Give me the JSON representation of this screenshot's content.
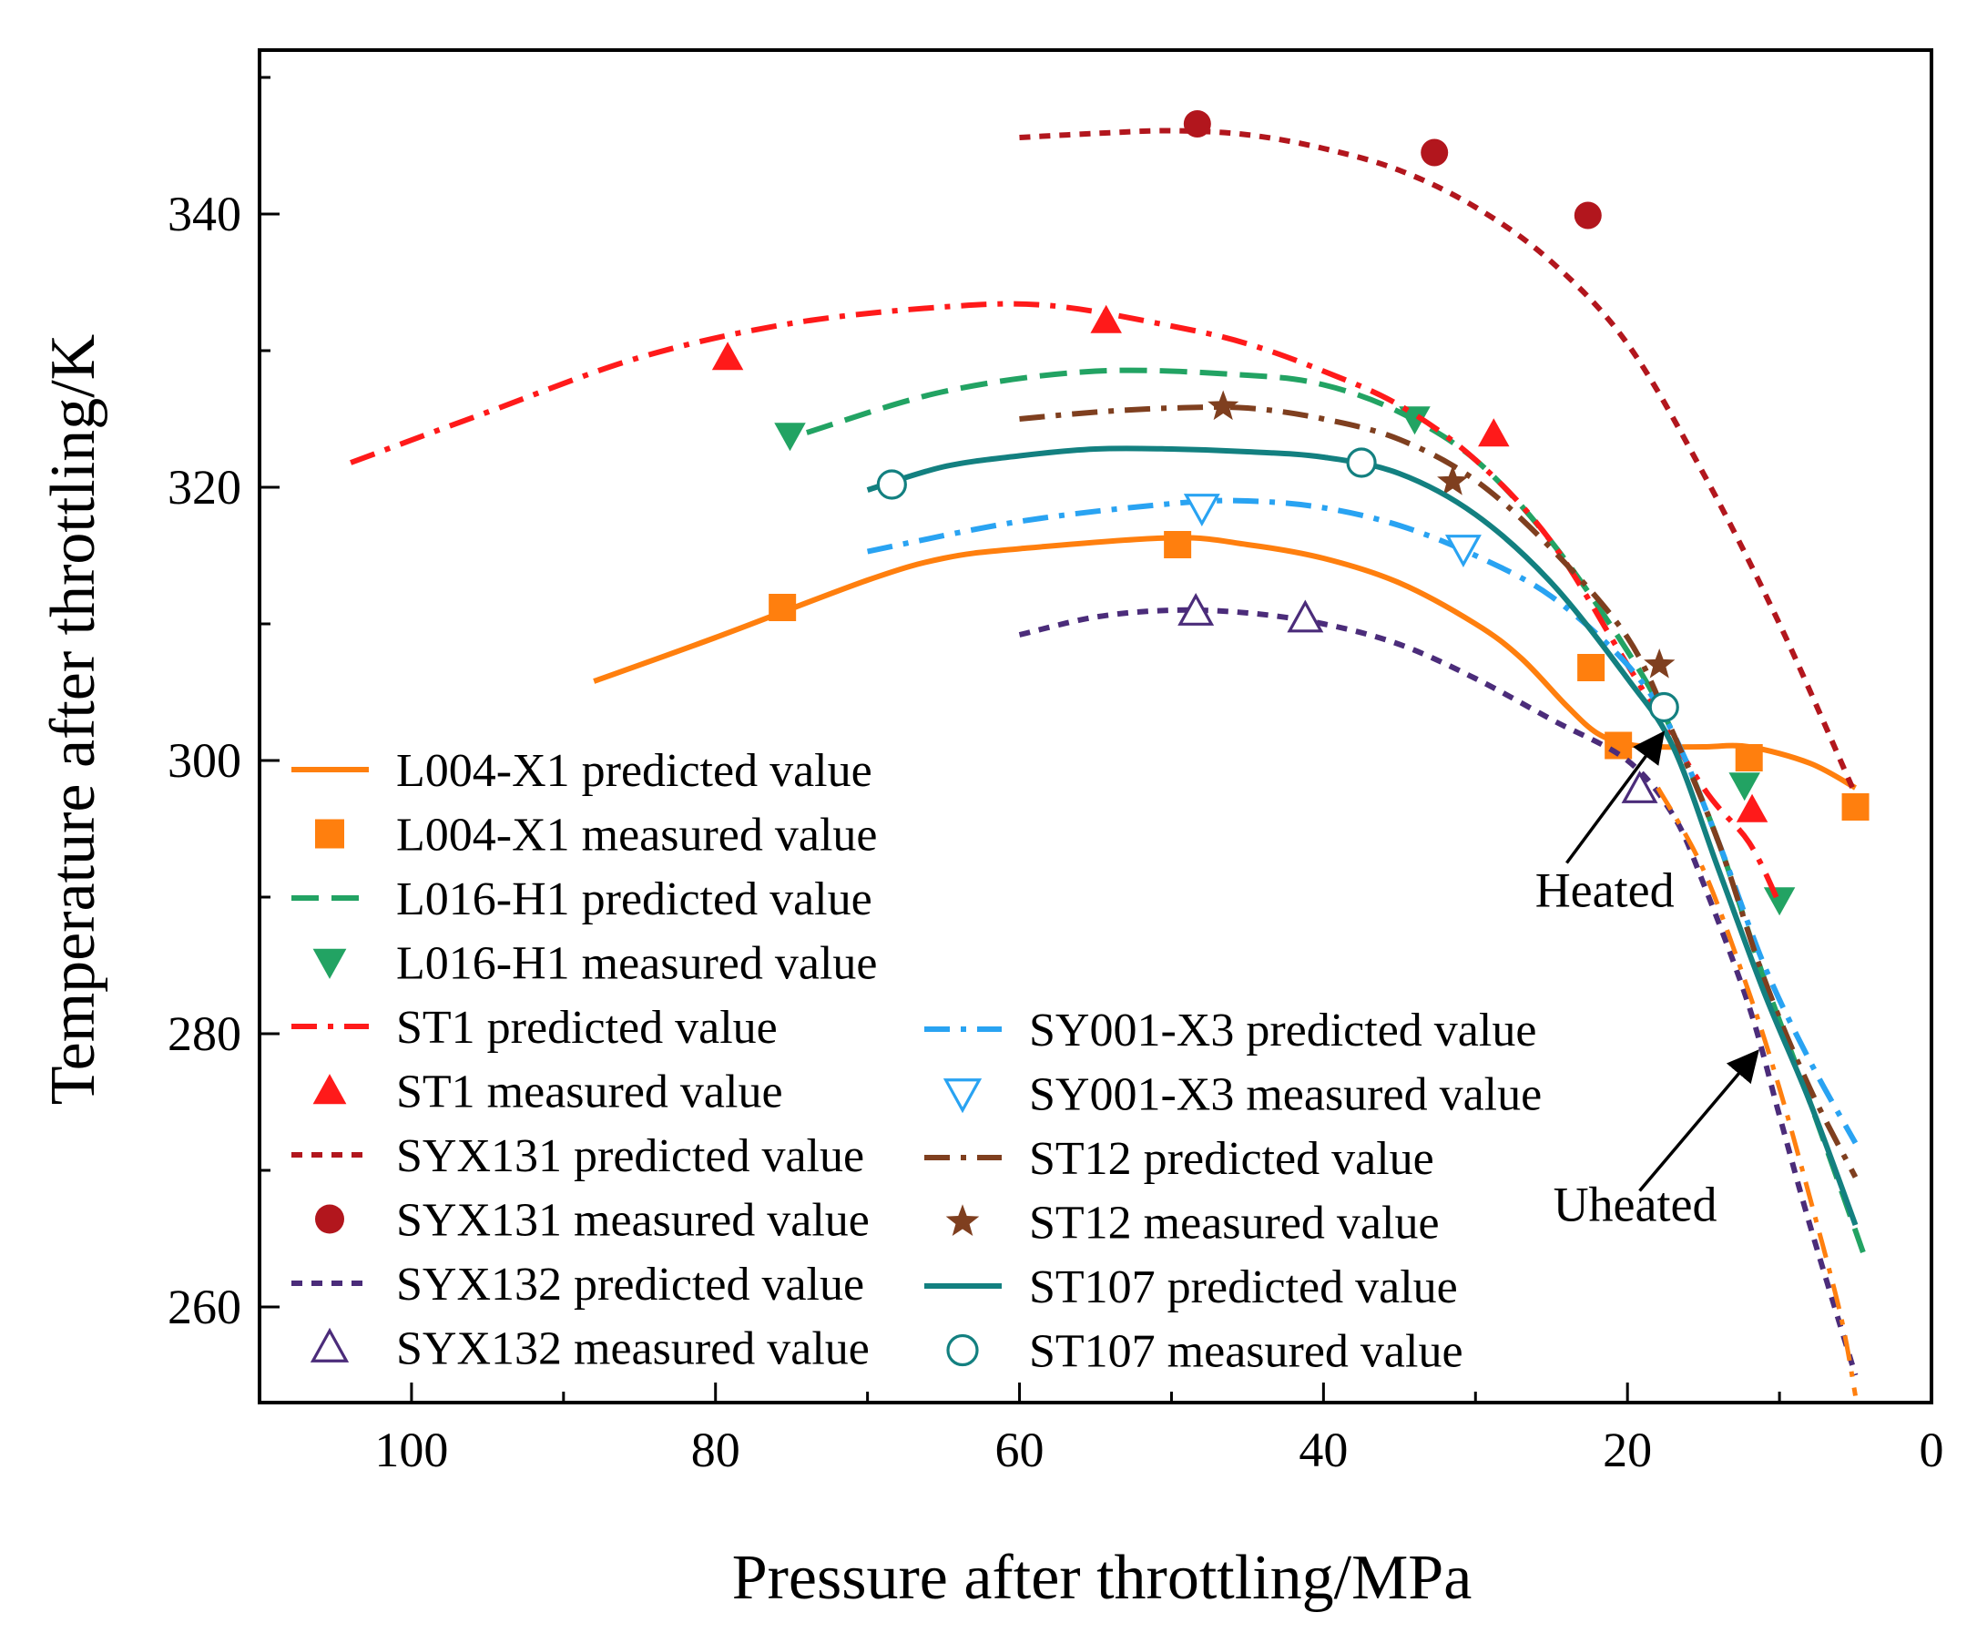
{
  "chart_data": {
    "type": "line",
    "xlabel": "Pressure after throttling/MPa",
    "ylabel": "Temperature after throttling/K",
    "xlim": [
      110,
      0
    ],
    "ylim": [
      253,
      352
    ],
    "x_reversed": true,
    "x_ticks": [
      100,
      80,
      60,
      40,
      20,
      0
    ],
    "x_tick_labels": [
      "100",
      "80",
      "60",
      "40",
      "20",
      "0"
    ],
    "y_ticks": [
      260,
      280,
      300,
      320,
      340
    ],
    "y_tick_labels": [
      "260",
      "280",
      "300",
      "320",
      "340"
    ],
    "legend_position": "lower-left",
    "series": [
      {
        "name": "L004-X1",
        "color": "#ff7f0e",
        "pred_label": "L004-X1 predicted value",
        "meas_label": "L004-X1 measured value",
        "line_style": "solid",
        "marker": "square",
        "filled": true,
        "predicted": [
          [
            88,
            305.8
          ],
          [
            80,
            309
          ],
          [
            70,
            313.2
          ],
          [
            65,
            314.8
          ],
          [
            60,
            315.5
          ],
          [
            50,
            316.3
          ],
          [
            45,
            315.8
          ],
          [
            40,
            314.8
          ],
          [
            35,
            313
          ],
          [
            30,
            310
          ],
          [
            27,
            307.5
          ],
          [
            24,
            304
          ],
          [
            22,
            302
          ],
          [
            20,
            301.2
          ],
          [
            18,
            301
          ],
          [
            15,
            301
          ],
          [
            12,
            301
          ],
          [
            8,
            299.8
          ],
          [
            5,
            298
          ]
        ],
        "measured": [
          [
            75.6,
            311.2
          ],
          [
            49.6,
            315.8
          ],
          [
            22.4,
            306.8
          ],
          [
            20.6,
            301.1
          ],
          [
            12,
            300.2
          ],
          [
            5,
            296.6
          ]
        ]
      },
      {
        "name": "L016-H1",
        "color": "#22a363",
        "pred_label": "L016-H1 predicted value",
        "meas_label": "L016-H1 measured value",
        "line_style": "dashed",
        "marker": "triangle-down",
        "filled": true,
        "predicted": [
          [
            74,
            324
          ],
          [
            65,
            327
          ],
          [
            55,
            328.5
          ],
          [
            45,
            328.2
          ],
          [
            40,
            327.5
          ],
          [
            35,
            325.5
          ],
          [
            30,
            322
          ],
          [
            25,
            316
          ],
          [
            20,
            308
          ],
          [
            17,
            302
          ],
          [
            14,
            294
          ],
          [
            11,
            284
          ],
          [
            8,
            275
          ],
          [
            4.5,
            264
          ]
        ],
        "measured": [
          [
            75.1,
            323.8
          ],
          [
            34,
            325
          ],
          [
            12.3,
            298.2
          ],
          [
            10,
            289.8
          ]
        ]
      },
      {
        "name": "ST1",
        "color": "#ff1a1a",
        "pred_label": "ST1 predicted value",
        "meas_label": "ST1 measured value",
        "line_style": "dashdot",
        "marker": "triangle-up",
        "filled": true,
        "predicted": [
          [
            104,
            321.8
          ],
          [
            95,
            325.5
          ],
          [
            85,
            329.5
          ],
          [
            75,
            332
          ],
          [
            65,
            333.2
          ],
          [
            58,
            333.3
          ],
          [
            50,
            331.8
          ],
          [
            45,
            330.5
          ],
          [
            40,
            328.5
          ],
          [
            35,
            326
          ],
          [
            30,
            322
          ],
          [
            25,
            316
          ],
          [
            20,
            307
          ],
          [
            15,
            298
          ],
          [
            12,
            294
          ],
          [
            10,
            289.5
          ]
        ],
        "measured": [
          [
            79.2,
            329.5
          ],
          [
            54.3,
            332.2
          ],
          [
            28.8,
            323.9
          ],
          [
            11.8,
            296.4
          ]
        ]
      },
      {
        "name": "SYX131",
        "color": "#b2161d",
        "pred_label": "SYX131 predicted value",
        "meas_label": "SYX131 measured value",
        "line_style": "dotted",
        "marker": "circle",
        "filled": true,
        "predicted": [
          [
            60,
            345.6
          ],
          [
            55,
            345.9
          ],
          [
            50,
            346.1
          ],
          [
            45,
            345.8
          ],
          [
            40,
            344.8
          ],
          [
            35,
            343.2
          ],
          [
            30,
            340.5
          ],
          [
            25,
            336.5
          ],
          [
            20,
            330.5
          ],
          [
            15,
            321
          ],
          [
            10,
            310
          ],
          [
            5,
            297.5
          ]
        ],
        "measured": [
          [
            48.3,
            346.6
          ],
          [
            32.7,
            344.5
          ],
          [
            22.6,
            339.9
          ]
        ]
      },
      {
        "name": "SYX132",
        "color": "#4b2c7a",
        "pred_label": "SYX132 predicted value",
        "meas_label": "SYX132 measured value",
        "line_style": "dotted",
        "marker": "triangle-up",
        "filled": false,
        "predicted": [
          [
            60,
            309.2
          ],
          [
            55,
            310.5
          ],
          [
            50,
            311
          ],
          [
            45,
            310.8
          ],
          [
            40,
            310
          ],
          [
            35,
            308.5
          ],
          [
            30,
            306
          ],
          [
            25,
            303
          ],
          [
            20,
            300
          ],
          [
            17,
            296
          ],
          [
            15,
            291
          ],
          [
            12,
            282
          ],
          [
            10,
            274
          ],
          [
            8,
            266
          ],
          [
            5,
            255
          ]
        ],
        "measured": [
          [
            48.4,
            310.9
          ],
          [
            41.2,
            310.4
          ],
          [
            19.2,
            297.9
          ]
        ]
      },
      {
        "name": "SY001-X3",
        "color": "#29a3f2",
        "pred_label": "SY001-X3 predicted value",
        "meas_label": "SY001-X3 measured value",
        "line_style": "dashdot",
        "marker": "triangle-down",
        "filled": false,
        "predicted": [
          [
            70,
            315.3
          ],
          [
            60,
            317.5
          ],
          [
            50,
            318.8
          ],
          [
            45,
            319
          ],
          [
            40,
            318.5
          ],
          [
            35,
            317.2
          ],
          [
            30,
            315
          ],
          [
            25,
            312
          ],
          [
            20,
            307
          ],
          [
            17,
            302
          ],
          [
            14,
            294
          ],
          [
            11,
            285
          ],
          [
            8,
            278
          ],
          [
            5,
            272
          ]
        ],
        "measured": [
          [
            48,
            318.5
          ],
          [
            30.8,
            315.5
          ]
        ]
      },
      {
        "name": "ST12",
        "color": "#7f3f1f",
        "pred_label": "ST12 predicted value",
        "meas_label": "ST12 measured value",
        "line_style": "dashdot",
        "marker": "star",
        "filled": true,
        "predicted": [
          [
            60,
            325
          ],
          [
            55,
            325.5
          ],
          [
            50,
            325.8
          ],
          [
            45,
            325.8
          ],
          [
            40,
            325
          ],
          [
            35,
            323.5
          ],
          [
            30,
            320.5
          ],
          [
            25,
            315.5
          ],
          [
            20,
            309
          ],
          [
            17,
            302
          ],
          [
            14,
            294
          ],
          [
            11,
            284
          ],
          [
            8,
            276
          ],
          [
            5,
            269.5
          ]
        ],
        "measured": [
          [
            46.6,
            325.9
          ],
          [
            31.5,
            320.4
          ],
          [
            17.9,
            307
          ]
        ]
      },
      {
        "name": "ST107",
        "color": "#138080",
        "pred_label": "ST107 predicted value",
        "meas_label": "ST107 measured value",
        "line_style": "solid",
        "marker": "circle",
        "filled": false,
        "predicted": [
          [
            70,
            319.8
          ],
          [
            65,
            321.5
          ],
          [
            60,
            322.3
          ],
          [
            55,
            322.8
          ],
          [
            50,
            322.8
          ],
          [
            45,
            322.6
          ],
          [
            40,
            322.2
          ],
          [
            35,
            321
          ],
          [
            30,
            318
          ],
          [
            25,
            313
          ],
          [
            20,
            306
          ],
          [
            17,
            301
          ],
          [
            14,
            292
          ],
          [
            11,
            283
          ],
          [
            8,
            275
          ],
          [
            5,
            266
          ]
        ],
        "measured": [
          [
            68.4,
            320.2
          ],
          [
            37.5,
            321.8
          ],
          [
            17.6,
            303.9
          ]
        ]
      }
    ],
    "unheated_overlay": {
      "color": "#ff7f0e",
      "style": "dashdot",
      "points": [
        [
          18,
          298
        ],
        [
          15,
          292
        ],
        [
          12,
          283
        ],
        [
          10,
          276
        ],
        [
          8,
          268
        ],
        [
          6,
          259.5
        ],
        [
          5,
          253.5
        ]
      ]
    },
    "annotations": [
      {
        "text": "Heated",
        "label_xy": [
          21.5,
          289.3
        ],
        "arrow_from": [
          24,
          292.5
        ],
        "arrow_to": [
          17.8,
          301.8
        ]
      },
      {
        "text": "Uheated",
        "label_xy": [
          19.5,
          266.3
        ],
        "arrow_from": [
          19.2,
          268.5
        ],
        "arrow_to": [
          11.6,
          278.5
        ]
      }
    ]
  }
}
